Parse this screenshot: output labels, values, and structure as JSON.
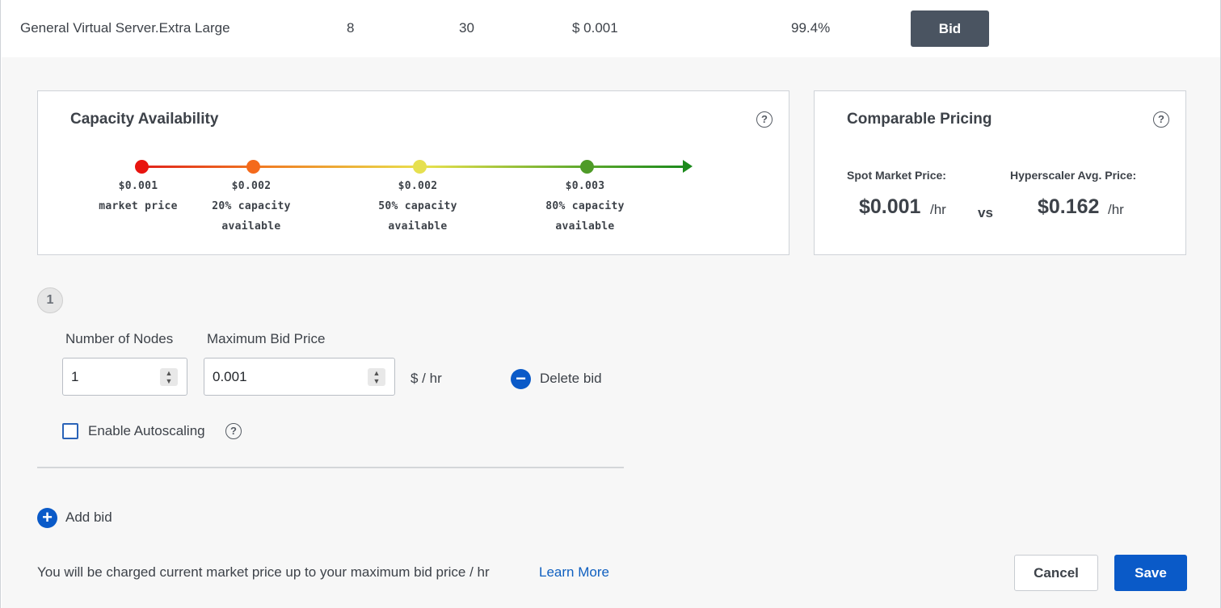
{
  "server_row": {
    "name": "General Virtual Server.Extra Large",
    "col2": "8",
    "col3": "30",
    "price": "$ 0.001",
    "availability": "99.4%",
    "bid_label": "Bid"
  },
  "capacity": {
    "title": "Capacity Availability",
    "help": "?",
    "markers": [
      {
        "price": "$0.001",
        "line1": "market price",
        "line2": "",
        "color": "#e8140f"
      },
      {
        "price": "$0.002",
        "line1": "20% capacity",
        "line2": "available",
        "color": "#f46a1c"
      },
      {
        "price": "$0.002",
        "line1": "50% capacity",
        "line2": "available",
        "color": "#e6e050"
      },
      {
        "price": "$0.003",
        "line1": "80% capacity",
        "line2": "available",
        "color": "#4f9b28"
      }
    ],
    "arrow_color": "#1c8a1c"
  },
  "comparable": {
    "title": "Comparable Pricing",
    "help": "?",
    "spot_label": "Spot Market Price:",
    "spot_value": "$0.001",
    "spot_unit": "/hr",
    "vs": "vs",
    "hyper_label": "Hyperscaler Avg. Price:",
    "hyper_value": "$0.162",
    "hyper_unit": "/hr"
  },
  "bid_form": {
    "step": "1",
    "nodes_label": "Number of Nodes",
    "nodes_value": "1",
    "max_bid_label": "Maximum Bid Price",
    "max_bid_value": "0.001",
    "unit": "$ / hr",
    "delete_label": "Delete bid",
    "autoscaling_label": "Enable Autoscaling",
    "autoscaling_help": "?",
    "add_label": "Add bid"
  },
  "footer": {
    "note": "You will be charged current market price up to your maximum bid price / hr",
    "learn_more": "Learn More",
    "cancel": "Cancel",
    "save": "Save"
  },
  "colors": {
    "primary": "#0a5ac8",
    "bid_button": "#4a5461"
  }
}
